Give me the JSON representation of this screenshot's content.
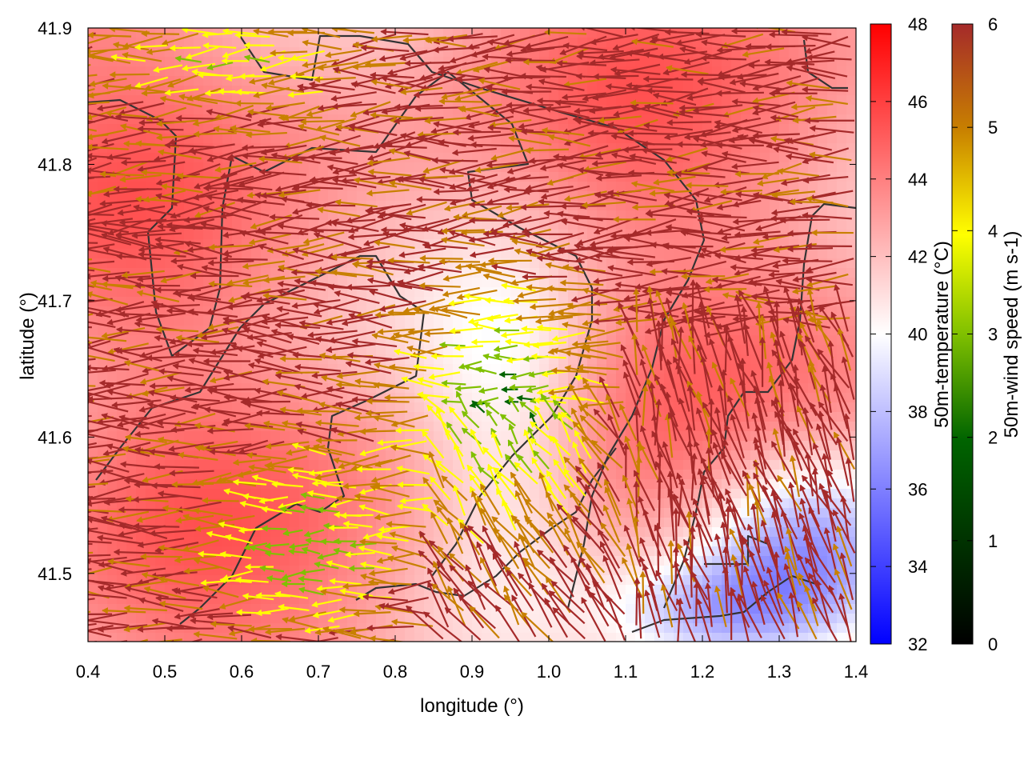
{
  "chart_data": {
    "type": "heatmap",
    "title": "",
    "xlabel": "longitude (°)",
    "ylabel": "latitude (°)",
    "xlim": [
      0.4,
      1.4
    ],
    "ylim": [
      41.45,
      41.9
    ],
    "x_ticks": [
      "0.4",
      "0.5",
      "0.6",
      "0.7",
      "0.8",
      "0.9",
      "1.0",
      "1.1",
      "1.2",
      "1.3",
      "1.4"
    ],
    "x_tick_values": [
      0.4,
      0.5,
      0.6,
      0.7,
      0.8,
      0.9,
      1.0,
      1.1,
      1.2,
      1.3,
      1.4
    ],
    "y_ticks": [
      "41.5",
      "41.6",
      "41.7",
      "41.8",
      "41.9"
    ],
    "y_tick_values": [
      41.5,
      41.6,
      41.7,
      41.8,
      41.9
    ],
    "grid": false,
    "background_field": {
      "name": "50m-temperature",
      "colorbar_label": "50m-temperature (°C)",
      "range": [
        32,
        48
      ],
      "ticks": [
        "32",
        "34",
        "36",
        "38",
        "40",
        "42",
        "44",
        "46",
        "48"
      ],
      "tick_values": [
        32,
        34,
        36,
        38,
        40,
        42,
        44,
        46,
        48
      ],
      "colormap": [
        "#0000ff",
        "#ffffff",
        "#ff0000"
      ]
    },
    "vector_field": {
      "name": "50m-wind speed",
      "colorbar_label": "50m-wind speed (m s-1)",
      "range": [
        0,
        6
      ],
      "ticks": [
        "0",
        "1",
        "2",
        "3",
        "4",
        "5",
        "6"
      ],
      "tick_values": [
        0,
        1,
        2,
        3,
        4,
        5,
        6
      ],
      "colormap": [
        "#000000",
        "#006400",
        "#80c000",
        "#ffff00",
        "#c88000",
        "#a52a2a"
      ]
    },
    "contour_color": "#333333"
  }
}
